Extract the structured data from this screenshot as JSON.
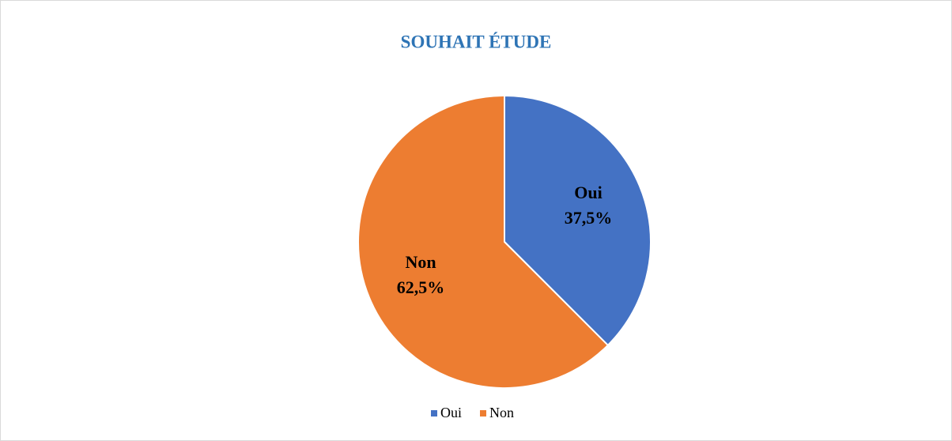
{
  "chart_data": {
    "type": "pie",
    "title": "SOUHAIT ÉTUDE",
    "categories": [
      "Oui",
      "Non"
    ],
    "values": [
      37.5,
      62.5
    ],
    "value_labels": [
      "37,5%",
      "62,5%"
    ],
    "colors": [
      "#4472c4",
      "#ed7d31"
    ],
    "legend": "bottom"
  }
}
